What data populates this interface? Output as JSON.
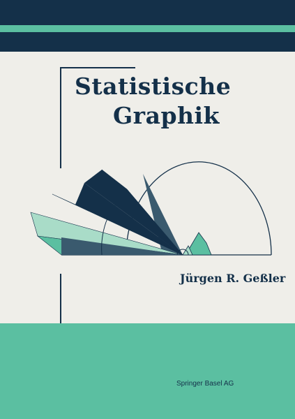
{
  "cover": {
    "title_line1": "Statistische",
    "title_line2": "Graphik",
    "author": "Jürgen R. Geßler",
    "publisher": "Springer Basel AG"
  },
  "colors": {
    "navy": "#143049",
    "teal": "#5bbfa1",
    "mint": "#a9dcc8",
    "slate": "#3a5a6e",
    "background": "#efeee9"
  }
}
